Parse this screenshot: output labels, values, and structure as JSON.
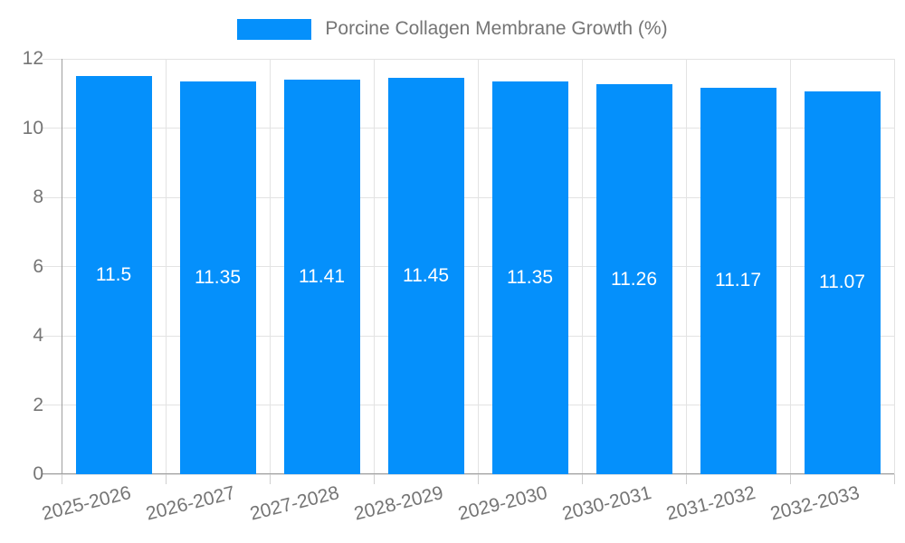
{
  "legend": {
    "label": "Porcine Collagen Membrane Growth (%)"
  },
  "chart_data": {
    "type": "bar",
    "title": "Porcine Collagen Membrane Growth (%)",
    "categories": [
      "2025-2026",
      "2026-2027",
      "2027-2028",
      "2028-2029",
      "2029-2030",
      "2030-2031",
      "2031-2032",
      "2032-2033"
    ],
    "values": [
      11.5,
      11.35,
      11.41,
      11.45,
      11.35,
      11.26,
      11.17,
      11.07
    ],
    "value_labels": [
      "11.5",
      "11.35",
      "11.41",
      "11.45",
      "11.35",
      "11.26",
      "11.17",
      "11.07"
    ],
    "xlabel": "",
    "ylabel": "",
    "ylim": [
      0,
      12
    ],
    "yticks": [
      0,
      2,
      4,
      6,
      8,
      10,
      12
    ],
    "grid": true,
    "legend_position": "top",
    "colors": {
      "bar": "#0590FB",
      "value_label": "#FFFFFF",
      "axis_text": "#757575",
      "grid_line": "#E3E3E3",
      "axis_line": "#9E9E9E",
      "tick_line": "#CFCFCF"
    }
  }
}
